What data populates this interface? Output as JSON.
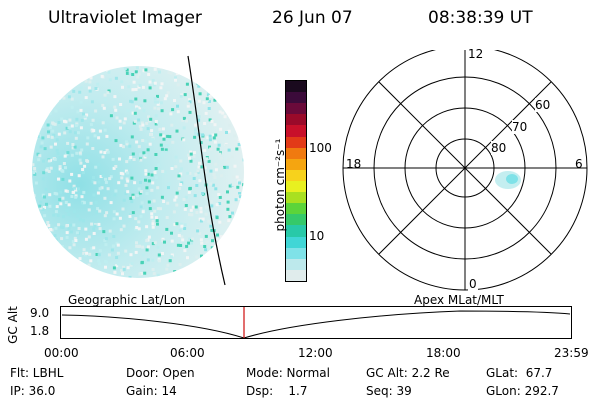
{
  "header": {
    "title": "Ultraviolet Imager",
    "date": "26 Jun 07",
    "time": "08:38:39 UT"
  },
  "colorbar": {
    "label": "photon cm⁻²s⁻¹",
    "ticks": [
      "100",
      "10"
    ],
    "colors": [
      "#1a0a1e",
      "#3b0b3a",
      "#6a0a3a",
      "#9a0a2a",
      "#c8102a",
      "#e23a18",
      "#f07a10",
      "#f5a510",
      "#f7d21c",
      "#e8f020",
      "#a9e020",
      "#5cd43a",
      "#35c96a",
      "#28c9a8",
      "#40d6d6",
      "#7fe2e8",
      "#bde9ec",
      "#e0ecec"
    ]
  },
  "polar": {
    "labels": {
      "top": "12",
      "bottom": "0",
      "left": "18",
      "right": "6"
    },
    "lat_labels": [
      "80",
      "70",
      "60"
    ]
  },
  "timeline": {
    "axis_label": "GC Alt",
    "y_ticks": [
      "9.0",
      "1.8"
    ],
    "left_title": "Geographic Lat/Lon",
    "right_title": "Apex MLat/MLT",
    "x_ticks": [
      "00:00",
      "06:00",
      "12:00",
      "18:00",
      "23:59"
    ],
    "current_marker_color": "#d21e1e"
  },
  "info": {
    "rows": [
      [
        "Flt: LBHL",
        "Door: Open",
        "Mode: Normal",
        "GC Alt: 2.2 Re",
        "GLat:  67.7"
      ],
      [
        "IP: 36.0",
        "Gain: 14",
        "Dsp:    1.7",
        "Seq: 39",
        "GLon: 292.7"
      ]
    ]
  }
}
